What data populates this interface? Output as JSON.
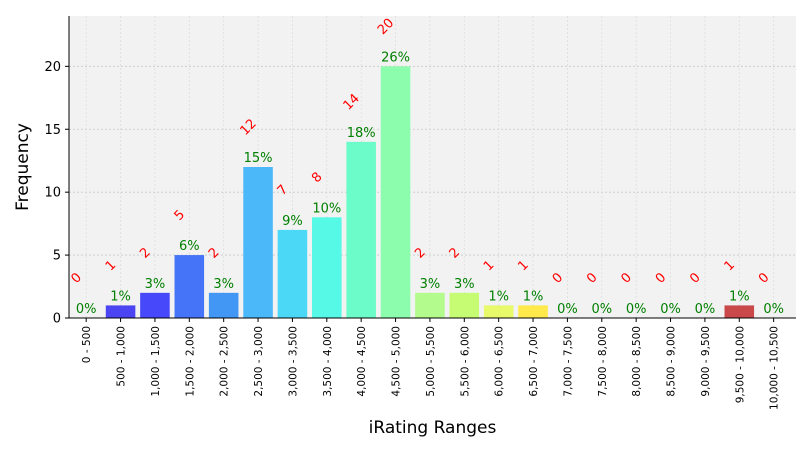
{
  "chart_data": {
    "type": "bar",
    "title": "",
    "xlabel": "iRating Ranges",
    "ylabel": "Frequency",
    "ylim": [
      0,
      24
    ],
    "yticks": [
      0,
      5,
      10,
      15,
      20
    ],
    "grid": true,
    "categories": [
      "0 - 500",
      "500 - 1,000",
      "1,000 - 1,500",
      "1,500 - 2,000",
      "2,000 - 2,500",
      "2,500 - 3,000",
      "3,000 - 3,500",
      "3,500 - 4,000",
      "4,000 - 4,500",
      "4,500 - 5,000",
      "5,000 - 5,500",
      "5,500 - 6,000",
      "6,000 - 6,500",
      "6,500 - 7,000",
      "7,000 - 7,500",
      "7,500 - 8,000",
      "8,000 - 8,500",
      "8,500 - 9,000",
      "9,000 - 9,500",
      "9,500 - 10,000",
      "10,000 - 10,500"
    ],
    "values": [
      0,
      1,
      2,
      5,
      2,
      12,
      7,
      8,
      14,
      20,
      2,
      2,
      1,
      1,
      0,
      0,
      0,
      0,
      0,
      1,
      0
    ],
    "percent_labels": [
      "0%",
      "1%",
      "3%",
      "6%",
      "3%",
      "15%",
      "9%",
      "10%",
      "18%",
      "26%",
      "3%",
      "3%",
      "1%",
      "1%",
      "0%",
      "0%",
      "0%",
      "0%",
      "0%",
      "1%",
      "0%"
    ],
    "colors": [
      "#2a00ff",
      "#4a44f2",
      "#4848fb",
      "#4574f8",
      "#4296f4",
      "#4bb8fa",
      "#4bd8f7",
      "#56f8e6",
      "#6cfcc9",
      "#8cfdad",
      "#b2fb8c",
      "#c6fb74",
      "#e8f96a",
      "#ffe94b",
      "#ffc84b",
      "#ffa34b",
      "#ff824b",
      "#f8614b",
      "#e8423e",
      "#c9484a",
      "#b22222"
    ],
    "background": "#f2f2f2",
    "count_label_color": "#ff0000",
    "percent_label_color": "#008000"
  }
}
